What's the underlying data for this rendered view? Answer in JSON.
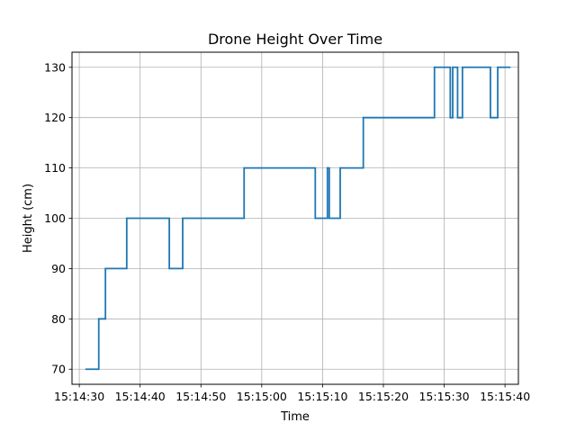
{
  "chart_data": {
    "type": "line",
    "title": "Drone Height Over Time",
    "xlabel": "Time",
    "ylabel": "Height (cm)",
    "grid": true,
    "xlim": [
      "15:14:28.800",
      "15:15:42.200"
    ],
    "ylim": [
      67,
      133
    ],
    "x_ticks": [
      "15:14:30",
      "15:14:40",
      "15:14:50",
      "15:15:00",
      "15:15:10",
      "15:15:20",
      "15:15:30",
      "15:15:40"
    ],
    "y_ticks": [
      70,
      80,
      90,
      100,
      110,
      120,
      130
    ],
    "series": [
      {
        "color": "#1f77b4",
        "step": "post",
        "x": [
          "15:14:31.100",
          "15:14:33.200",
          "15:14:34.300",
          "15:14:37.800",
          "15:14:44.800",
          "15:14:47.000",
          "15:14:57.100",
          "15:15:08.800",
          "15:15:10.800",
          "15:15:11.100",
          "15:15:12.900",
          "15:15:16.700",
          "15:15:28.400",
          "15:15:31.000",
          "15:15:31.400",
          "15:15:32.200",
          "15:15:33.000",
          "15:15:33.400",
          "15:15:37.600",
          "15:15:38.800",
          "15:15:40.800"
        ],
        "values": [
          70,
          80,
          90,
          100,
          90,
          100,
          110,
          100,
          110,
          100,
          110,
          120,
          130,
          120,
          130,
          120,
          130,
          130,
          120,
          130,
          130
        ]
      }
    ]
  }
}
